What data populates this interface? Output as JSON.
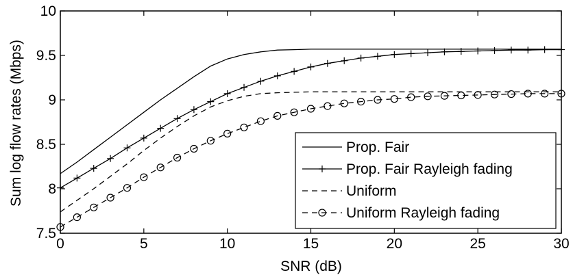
{
  "chart_data": {
    "type": "line",
    "xlabel": "SNR (dB)",
    "ylabel": "Sum log flow rates (Mbps)",
    "xlim": [
      0,
      30
    ],
    "ylim": [
      7.5,
      10
    ],
    "xticks": [
      "0",
      "5",
      "10",
      "15",
      "20",
      "25",
      "30"
    ],
    "yticks": [
      "7.5",
      "8",
      "8.5",
      "9",
      "9.5",
      "10"
    ],
    "grid": false,
    "legend_position": "bottom-right",
    "x": [
      0,
      1,
      2,
      3,
      4,
      5,
      6,
      7,
      8,
      9,
      10,
      11,
      12,
      13,
      14,
      15,
      16,
      17,
      18,
      19,
      20,
      21,
      22,
      23,
      24,
      25,
      26,
      27,
      28,
      29,
      30
    ],
    "series": [
      {
        "name": "Prop. Fair",
        "line": "solid",
        "marker": "none",
        "values": [
          8.17,
          8.3,
          8.44,
          8.58,
          8.72,
          8.86,
          9.0,
          9.13,
          9.26,
          9.38,
          9.46,
          9.51,
          9.54,
          9.56,
          9.565,
          9.57,
          9.57,
          9.57,
          9.57,
          9.57,
          9.57,
          9.57,
          9.57,
          9.57,
          9.57,
          9.57,
          9.57,
          9.57,
          9.57,
          9.57,
          9.57
        ]
      },
      {
        "name": "Prop. Fair Rayleigh fading",
        "line": "solid",
        "marker": "plus",
        "values": [
          8.01,
          8.12,
          8.23,
          8.34,
          8.46,
          8.57,
          8.68,
          8.79,
          8.89,
          8.98,
          9.07,
          9.14,
          9.21,
          9.27,
          9.32,
          9.37,
          9.41,
          9.44,
          9.47,
          9.49,
          9.51,
          9.52,
          9.53,
          9.54,
          9.545,
          9.55,
          9.555,
          9.56,
          9.56,
          9.565,
          9.565
        ]
      },
      {
        "name": "Uniform",
        "line": "dashed",
        "marker": "none",
        "values": [
          7.74,
          7.87,
          8.0,
          8.14,
          8.28,
          8.43,
          8.57,
          8.7,
          8.82,
          8.92,
          8.99,
          9.04,
          9.07,
          9.08,
          9.085,
          9.09,
          9.09,
          9.09,
          9.09,
          9.09,
          9.09,
          9.09,
          9.09,
          9.09,
          9.09,
          9.09,
          9.09,
          9.09,
          9.09,
          9.09,
          9.09
        ]
      },
      {
        "name": "Uniform Rayleigh fading",
        "line": "dashed",
        "marker": "circle",
        "values": [
          7.57,
          7.68,
          7.79,
          7.9,
          8.01,
          8.13,
          8.24,
          8.35,
          8.45,
          8.54,
          8.62,
          8.69,
          8.76,
          8.82,
          8.86,
          8.9,
          8.93,
          8.96,
          8.98,
          9.0,
          9.01,
          9.03,
          9.04,
          9.045,
          9.05,
          9.055,
          9.06,
          9.065,
          9.07,
          9.07,
          9.07
        ]
      }
    ]
  }
}
